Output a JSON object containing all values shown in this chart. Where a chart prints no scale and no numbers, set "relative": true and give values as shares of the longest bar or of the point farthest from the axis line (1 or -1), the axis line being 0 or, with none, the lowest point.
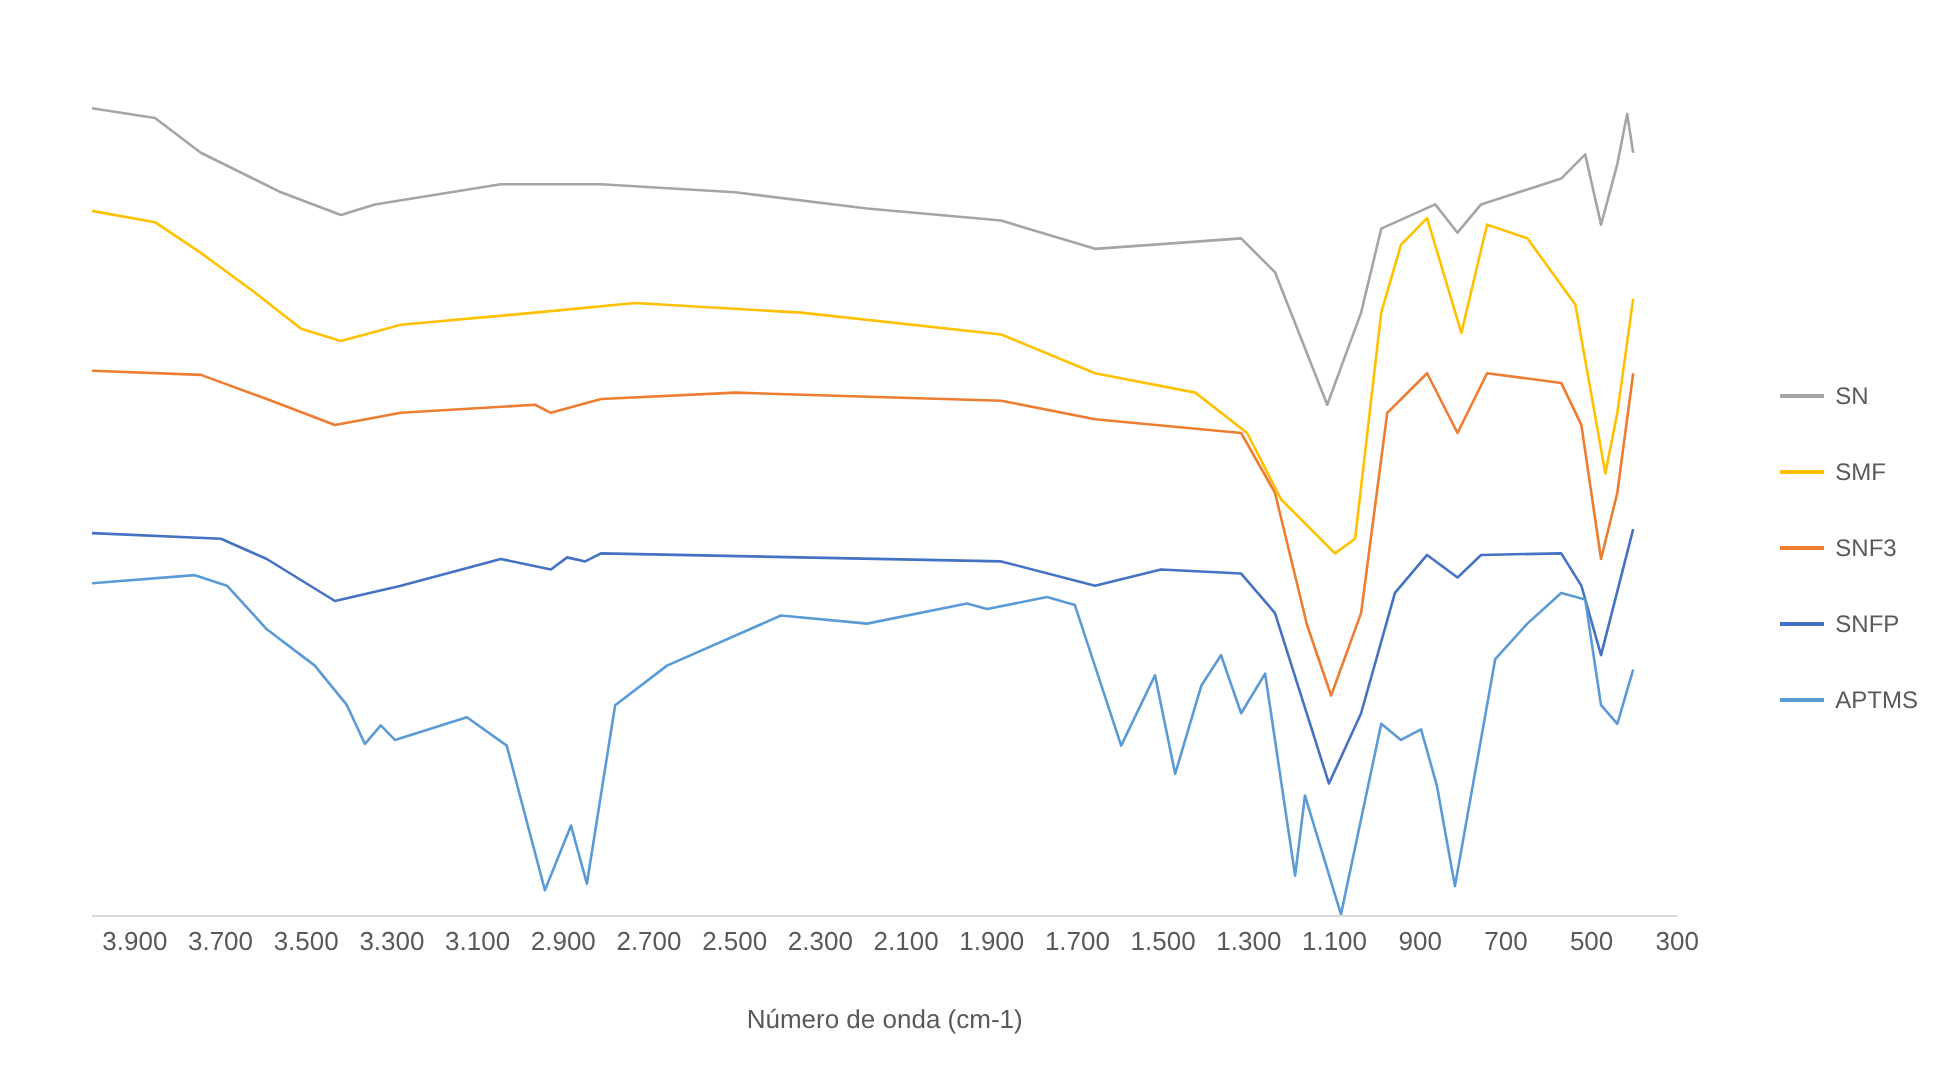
{
  "chart_data": {
    "type": "line",
    "relative": true,
    "xlabel": "Número de onda (cm-1)",
    "xlim": [
      4000,
      300
    ],
    "xticks": [
      {
        "value": 3900,
        "label": "3.900"
      },
      {
        "value": 3700,
        "label": "3.700"
      },
      {
        "value": 3500,
        "label": "3.500"
      },
      {
        "value": 3300,
        "label": "3.300"
      },
      {
        "value": 3100,
        "label": "3.100"
      },
      {
        "value": 2900,
        "label": "2.900"
      },
      {
        "value": 2700,
        "label": "2.700"
      },
      {
        "value": 2500,
        "label": "2.500"
      },
      {
        "value": 2300,
        "label": "2.300"
      },
      {
        "value": 2100,
        "label": "2.100"
      },
      {
        "value": 1900,
        "label": "1.900"
      },
      {
        "value": 1700,
        "label": "1.700"
      },
      {
        "value": 1500,
        "label": "1.500"
      },
      {
        "value": 1300,
        "label": "1.300"
      },
      {
        "value": 1100,
        "label": "1.100"
      },
      900,
      700,
      500,
      300
    ],
    "grid": false,
    "legend": "right",
    "marker": "none",
    "line_style": "solid",
    "series": [
      {
        "name": "SN",
        "color": "#a5a5a5",
        "x": [
          4000,
          3853,
          3746,
          3559,
          3419,
          3340,
          3046,
          2812,
          2499,
          2191,
          1878,
          1659,
          1318,
          1239,
          1117,
          1038,
          991,
          865,
          813,
          758,
          571,
          515,
          478,
          440,
          417,
          403
        ],
        "values": [
          1.0,
          0.988,
          0.945,
          0.896,
          0.868,
          0.881,
          0.906,
          0.906,
          0.896,
          0.876,
          0.861,
          0.826,
          0.839,
          0.797,
          0.633,
          0.747,
          0.851,
          0.881,
          0.846,
          0.881,
          0.913,
          0.943,
          0.856,
          0.931,
          0.993,
          0.945
        ]
      },
      {
        "name": "SMF",
        "color": "#ffc000",
        "x": [
          4000,
          3853,
          3746,
          3620,
          3512,
          3419,
          3279,
          2966,
          2733,
          2345,
          1878,
          1659,
          1425,
          1304,
          1225,
          1099,
          1052,
          991,
          945,
          884,
          804,
          744,
          650,
          538,
          468,
          440,
          403
        ],
        "values": [
          0.873,
          0.859,
          0.821,
          0.772,
          0.727,
          0.712,
          0.732,
          0.747,
          0.759,
          0.747,
          0.72,
          0.672,
          0.648,
          0.598,
          0.516,
          0.449,
          0.467,
          0.747,
          0.831,
          0.864,
          0.722,
          0.856,
          0.839,
          0.757,
          0.548,
          0.623,
          0.764
        ]
      },
      {
        "name": "SNF3",
        "color": "#ed7d31",
        "x": [
          4000,
          3746,
          3592,
          3433,
          3279,
          2966,
          2929,
          2812,
          2499,
          1878,
          1659,
          1318,
          1239,
          1164,
          1108,
          1038,
          977,
          884,
          813,
          744,
          571,
          524,
          478,
          440,
          403
        ],
        "values": [
          0.675,
          0.67,
          0.64,
          0.608,
          0.623,
          0.633,
          0.623,
          0.64,
          0.648,
          0.638,
          0.615,
          0.598,
          0.524,
          0.36,
          0.273,
          0.375,
          0.623,
          0.672,
          0.598,
          0.672,
          0.66,
          0.608,
          0.442,
          0.524,
          0.672
        ]
      },
      {
        "name": "SNFP",
        "color": "#4472c4",
        "x": [
          4000,
          3699,
          3592,
          3433,
          3279,
          3046,
          2929,
          2891,
          2849,
          2812,
          1878,
          1659,
          1505,
          1318,
          1239,
          1113,
          1038,
          959,
          884,
          813,
          758,
          571,
          524,
          478,
          403
        ],
        "values": [
          0.474,
          0.467,
          0.442,
          0.39,
          0.409,
          0.442,
          0.429,
          0.444,
          0.439,
          0.449,
          0.439,
          0.409,
          0.429,
          0.424,
          0.375,
          0.164,
          0.251,
          0.4,
          0.447,
          0.419,
          0.447,
          0.449,
          0.409,
          0.323,
          0.479
        ]
      },
      {
        "name": "APTMS",
        "color": "#5b9bd5",
        "x": [
          4000,
          3760,
          3685,
          3592,
          3480,
          3405,
          3363,
          3326,
          3293,
          3125,
          3032,
          2943,
          2882,
          2845,
          2779,
          2658,
          2392,
          2191,
          1958,
          1911,
          1771,
          1706,
          1598,
          1519,
          1472,
          1411,
          1365,
          1318,
          1262,
          1192,
          1169,
          1085,
          991,
          945,
          898,
          861,
          819,
          725,
          650,
          571,
          515,
          478,
          440,
          403
        ],
        "values": [
          0.412,
          0.422,
          0.409,
          0.355,
          0.31,
          0.261,
          0.213,
          0.236,
          0.218,
          0.246,
          0.211,
          0.032,
          0.112,
          0.04,
          0.261,
          0.31,
          0.372,
          0.362,
          0.387,
          0.38,
          0.395,
          0.385,
          0.211,
          0.298,
          0.176,
          0.285,
          0.323,
          0.251,
          0.3,
          0.05,
          0.149,
          0.002,
          0.238,
          0.218,
          0.231,
          0.161,
          0.037,
          0.318,
          0.362,
          0.4,
          0.392,
          0.261,
          0.238,
          0.305
        ]
      }
    ]
  }
}
